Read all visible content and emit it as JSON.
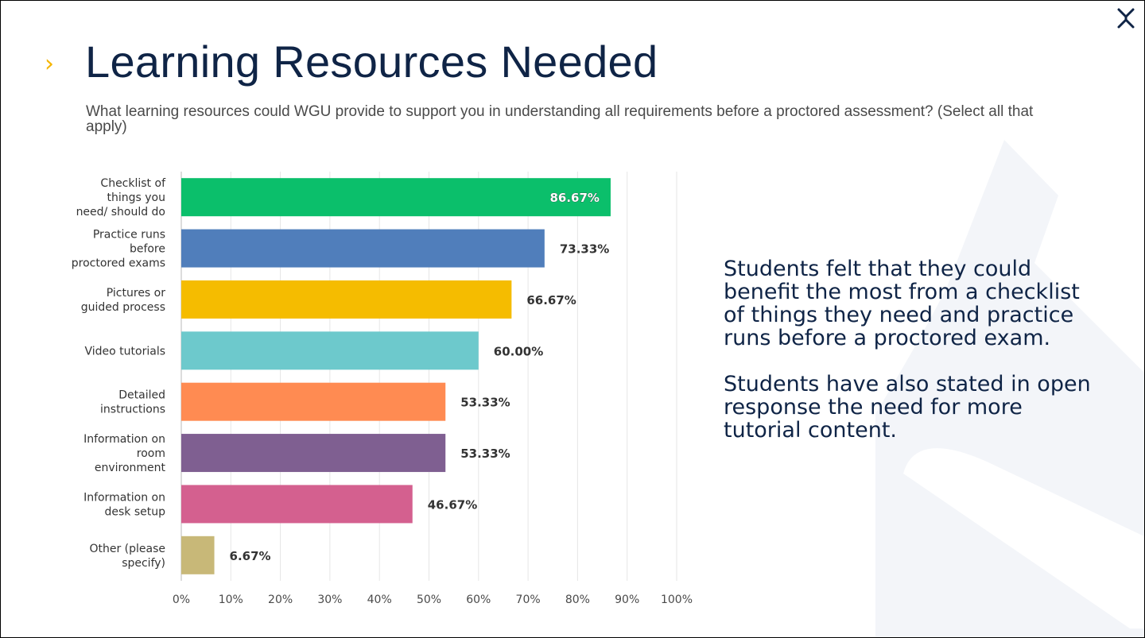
{
  "slide": {
    "title": "Learning Resources Needed",
    "question": "What learning resources could WGU provide to support you in understanding all requirements before a proctored assessment? (Select all that apply)",
    "summary": [
      "Students felt that they could benefit the most from a checklist of things they need and practice runs before a proctored exam.",
      "Students have also stated in open response the need for more tutorial content."
    ],
    "chevron": "›",
    "colors": {
      "title": "#0f2446",
      "accent": "#f5b500",
      "text": "#0f2446"
    }
  },
  "chart_data": {
    "type": "bar",
    "orientation": "horizontal",
    "categories": [
      "Checklist of things you need/ should do",
      "Practice runs before proctored exams",
      "Pictures or guided process",
      "Video tutorials",
      "Detailed instructions",
      "Information on room environment",
      "Information on desk setup",
      "Other (please specify)"
    ],
    "category_lines": [
      [
        "Checklist of",
        "things you",
        "need/ should do"
      ],
      [
        "Practice runs",
        "before",
        "proctored exams"
      ],
      [
        "Pictures or",
        "guided process"
      ],
      [
        "Video tutorials"
      ],
      [
        "Detailed",
        "instructions"
      ],
      [
        "Information on",
        "room",
        "environment"
      ],
      [
        "Information on",
        "desk setup"
      ],
      [
        "Other (please",
        "specify)"
      ]
    ],
    "values": [
      86.67,
      73.33,
      66.67,
      60.0,
      53.33,
      53.33,
      46.67,
      6.67
    ],
    "value_labels": [
      "86.67%",
      "73.33%",
      "66.67%",
      "60.00%",
      "53.33%",
      "53.33%",
      "46.67%",
      "6.67%"
    ],
    "colors": [
      "#0bbf6b",
      "#507ebb",
      "#f5bc00",
      "#6dc9cc",
      "#ff8b52",
      "#7f5f91",
      "#d4608f",
      "#c8b878"
    ],
    "xlim": [
      0,
      100
    ],
    "x_ticks": [
      "0%",
      "10%",
      "20%",
      "30%",
      "40%",
      "50%",
      "60%",
      "70%",
      "80%",
      "90%",
      "100%"
    ],
    "grid": true,
    "xlabel": "",
    "ylabel": ""
  }
}
